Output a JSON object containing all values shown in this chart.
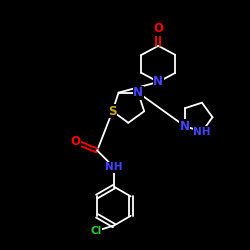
{
  "background": "#000000",
  "bond_color": "#ffffff",
  "atom_colors": {
    "N": "#4444ff",
    "O": "#ff0000",
    "S": "#ccaa00",
    "Cl": "#33cc33",
    "C": "#ffffff",
    "H": "#ffffff"
  },
  "font_size": 8.5,
  "lw": 1.3
}
